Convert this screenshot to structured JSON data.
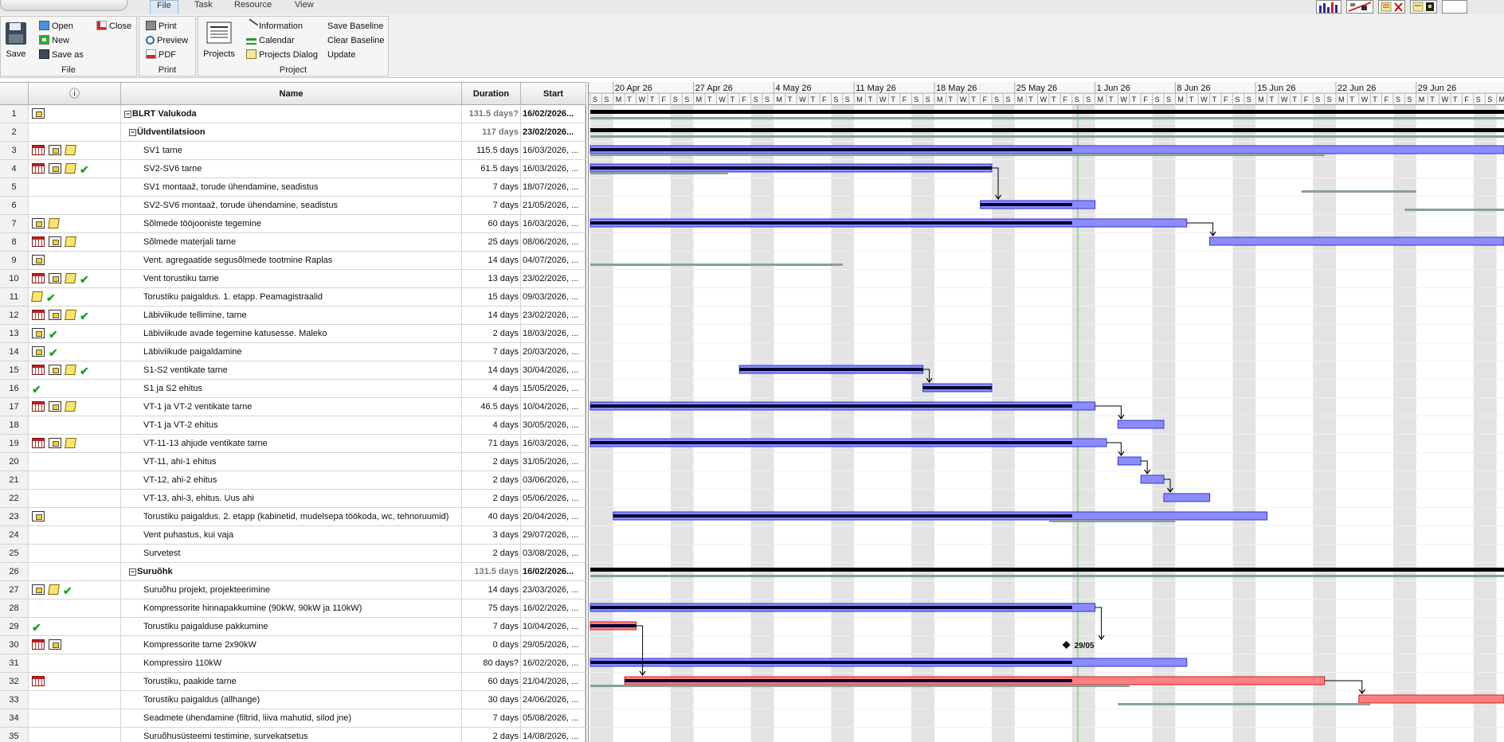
{
  "tabs": [
    {
      "label": "File",
      "active": true
    },
    {
      "label": "Task",
      "active": false
    },
    {
      "label": "Resource",
      "active": false
    },
    {
      "label": "View",
      "active": false
    }
  ],
  "ribbon": {
    "file": {
      "save": "Save",
      "open": "Open",
      "new": "New",
      "save_as": "Save as",
      "close": "Close",
      "label": "File"
    },
    "print": {
      "print": "Print",
      "preview": "Preview",
      "pdf": "PDF",
      "label": "Print"
    },
    "project": {
      "projects": "Projects",
      "information": "Information",
      "calendar": "Calendar",
      "projects_dialog": "Projects Dialog",
      "save_baseline": "Save Baseline",
      "clear_baseline": "Clear Baseline",
      "update": "Update",
      "label": "Project"
    }
  },
  "columns": {
    "info": "ⓘ",
    "name": "Name",
    "duration": "Duration",
    "start": "Start"
  },
  "rows": [
    {
      "id": "1",
      "name": "BLRT Valukoda",
      "duration": "131.5 days?",
      "start": "16/02/2026...",
      "level": 0,
      "summary": true,
      "ind": [
        "proj"
      ]
    },
    {
      "id": "2",
      "name": "Üldventilatsioon",
      "duration": "117 days",
      "start": "23/02/2026...",
      "level": 1,
      "summary": true,
      "ind": []
    },
    {
      "id": "3",
      "name": "SV1 tarne",
      "duration": "115.5 days",
      "start": "16/03/2026, ...",
      "level": 2,
      "ind": [
        "cal",
        "proj",
        "note"
      ]
    },
    {
      "id": "4",
      "name": "SV2-SV6 tarne",
      "duration": "61.5 days",
      "start": "16/03/2026, ...",
      "level": 2,
      "ind": [
        "cal",
        "proj",
        "note",
        "check"
      ]
    },
    {
      "id": "5",
      "name": "SV1 montaaž, torude ühendamine, seadistus",
      "duration": "7 days",
      "start": "18/07/2026, ...",
      "level": 2,
      "ind": []
    },
    {
      "id": "6",
      "name": "SV2-SV6 montaaž, torude ühendamine, seadistus",
      "duration": "7 days",
      "start": "21/05/2026, ...",
      "level": 2,
      "ind": []
    },
    {
      "id": "7",
      "name": "Sõlmede tööjooniste tegemine",
      "duration": "60 days",
      "start": "16/03/2026, ...",
      "level": 2,
      "ind": [
        "proj",
        "note"
      ]
    },
    {
      "id": "8",
      "name": "Sõlmede materjali tarne",
      "duration": "25 days",
      "start": "08/06/2026, ...",
      "level": 2,
      "ind": [
        "cal",
        "proj",
        "note"
      ]
    },
    {
      "id": "9",
      "name": "Vent. agregaatide segusõlmede tootmine Raplas",
      "duration": "14 days",
      "start": "04/07/2026, ...",
      "level": 2,
      "ind": [
        "proj"
      ]
    },
    {
      "id": "10",
      "name": "Vent torustiku tarne",
      "duration": "13 days",
      "start": "23/02/2026, ...",
      "level": 2,
      "ind": [
        "cal",
        "proj",
        "note",
        "check"
      ]
    },
    {
      "id": "11",
      "name": "Torustiku paigaldus. 1. etapp. Peamagistraalid",
      "duration": "15 days",
      "start": "09/03/2026, ...",
      "level": 2,
      "ind": [
        "note",
        "check"
      ]
    },
    {
      "id": "12",
      "name": "Läbiviikude tellimine, tarne",
      "duration": "14 days",
      "start": "23/02/2026, ...",
      "level": 2,
      "ind": [
        "cal",
        "proj",
        "note",
        "check"
      ]
    },
    {
      "id": "13",
      "name": "Läbiviikude avade tegemine katusesse. Maleko",
      "duration": "2 days",
      "start": "18/03/2026, ...",
      "level": 2,
      "ind": [
        "proj",
        "check"
      ]
    },
    {
      "id": "14",
      "name": "Läbiviikude paigaldamine",
      "duration": "7 days",
      "start": "20/03/2026, ...",
      "level": 2,
      "ind": [
        "proj",
        "check"
      ]
    },
    {
      "id": "15",
      "name": "S1-S2 ventikate tarne",
      "duration": "14 days",
      "start": "30/04/2026, ...",
      "level": 2,
      "ind": [
        "cal",
        "proj",
        "note",
        "check"
      ]
    },
    {
      "id": "16",
      "name": "S1 ja S2 ehitus",
      "duration": "4 days",
      "start": "15/05/2026, ...",
      "level": 2,
      "ind": [
        "check"
      ]
    },
    {
      "id": "17",
      "name": "VT-1 ja VT-2 ventikate tarne",
      "duration": "46.5 days",
      "start": "10/04/2026, ...",
      "level": 2,
      "ind": [
        "cal",
        "proj",
        "note"
      ]
    },
    {
      "id": "18",
      "name": "VT-1 ja VT-2 ehitus",
      "duration": "4 days",
      "start": "30/05/2026, ...",
      "level": 2,
      "ind": []
    },
    {
      "id": "19",
      "name": "VT-11-13 ahjude ventikate tarne",
      "duration": "71 days",
      "start": "16/03/2026, ...",
      "level": 2,
      "ind": [
        "cal",
        "proj",
        "note"
      ]
    },
    {
      "id": "20",
      "name": "VT-11, ahi-1 ehitus",
      "duration": "2 days",
      "start": "31/05/2026, ...",
      "level": 2,
      "ind": []
    },
    {
      "id": "21",
      "name": "VT-12, ahi-2  ehitus",
      "duration": "2 days",
      "start": "03/06/2026, ...",
      "level": 2,
      "ind": []
    },
    {
      "id": "22",
      "name": "VT-13, ahi-3, ehitus. Uus ahi",
      "duration": "2 days",
      "start": "05/06/2026, ...",
      "level": 2,
      "ind": []
    },
    {
      "id": "23",
      "name": "Torustiku paigaldus. 2. etapp (kabinetid, mudelsepa töökoda, wc, tehnoruumid)",
      "duration": "40 days",
      "start": "20/04/2026, ...",
      "level": 2,
      "ind": [
        "proj"
      ]
    },
    {
      "id": "24",
      "name": "Vent puhastus, kui vaja",
      "duration": "3 days",
      "start": "29/07/2026, ...",
      "level": 2,
      "ind": []
    },
    {
      "id": "25",
      "name": "Survetest",
      "duration": "2 days",
      "start": "03/08/2026, ...",
      "level": 2,
      "ind": []
    },
    {
      "id": "26",
      "name": "Suruõhk",
      "duration": "131.5 days",
      "start": "16/02/2026...",
      "level": 1,
      "summary": true,
      "ind": []
    },
    {
      "id": "27",
      "name": "Suruõhu projekt, projekteerimine",
      "duration": "14 days",
      "start": "23/03/2026, ...",
      "level": 2,
      "ind": [
        "proj",
        "note",
        "check"
      ]
    },
    {
      "id": "28",
      "name": "Kompressorite hinnapakkumine (90kW, 90kW ja 110kW)",
      "duration": "75 days",
      "start": "16/02/2026, ...",
      "level": 2,
      "ind": []
    },
    {
      "id": "29",
      "name": "Torustiku paigalduse pakkumine",
      "duration": "7 days",
      "start": "10/04/2026, ...",
      "level": 2,
      "ind": [
        "check"
      ]
    },
    {
      "id": "30",
      "name": "Kompressorite tarne 2x90kW",
      "duration": "0 days",
      "start": "29/05/2026, ...",
      "level": 2,
      "ind": [
        "cal",
        "proj"
      ]
    },
    {
      "id": "31",
      "name": "Kompressiro 110kW",
      "duration": "80 days?",
      "start": "16/02/2026, ...",
      "level": 2,
      "ind": []
    },
    {
      "id": "32",
      "name": "Torustiku, paakide tarne",
      "duration": "60 days",
      "start": "21/04/2026, ...",
      "level": 2,
      "ind": [
        "cal"
      ]
    },
    {
      "id": "33",
      "name": "Torustiku paigaldus (allhange)",
      "duration": "30 days",
      "start": "24/06/2026, ...",
      "level": 2,
      "ind": []
    },
    {
      "id": "34",
      "name": "Seadmete ühendamine (filtrid, liiva mahutid, silod jne)",
      "duration": "7 days",
      "start": "05/08/2026, ...",
      "level": 2,
      "ind": []
    },
    {
      "id": "35",
      "name": "Suruõhusüsteemi testimine, survekatsetus",
      "duration": "2 days",
      "start": "14/08/2026, ...",
      "level": 2,
      "ind": []
    }
  ],
  "timeline": {
    "weeks": [
      "20 Apr 26",
      "27 Apr 26",
      "4 May 26",
      "11 May 26",
      "18 May 26",
      "25 May 26",
      "1 Jun 26",
      "8 Jun 26",
      "15 Jun 26",
      "22 Jun 26",
      "29 Jun 26"
    ],
    "first_visible_date": "18/04/2026",
    "days_visible": 80,
    "day_letters": [
      "S",
      "S",
      "M",
      "T",
      "W",
      "T",
      "F"
    ],
    "today": "30/05/2026"
  },
  "bars": [
    {
      "row": 1,
      "type": "summary",
      "from": "18/04/2026",
      "to": "31/07/2026"
    },
    {
      "row": 1,
      "type": "baseline",
      "from": "18/04/2026",
      "to": "31/07/2026"
    },
    {
      "row": 2,
      "type": "summary",
      "from": "18/04/2026",
      "to": "31/07/2026"
    },
    {
      "row": 2,
      "type": "baseline",
      "from": "18/04/2026",
      "to": "31/07/2026"
    },
    {
      "row": 3,
      "type": "task",
      "from": "18/04/2026",
      "to": "31/07/2026",
      "progress_to": "29/05/2026"
    },
    {
      "row": 3,
      "type": "baseline",
      "from": "18/04/2026",
      "to": "20/06/2026"
    },
    {
      "row": 4,
      "type": "task",
      "from": "18/04/2026",
      "to": "22/05/2026",
      "progress_to": "22/05/2026"
    },
    {
      "row": 4,
      "type": "baseline",
      "from": "18/04/2026",
      "to": "29/04/2026"
    },
    {
      "row": 5,
      "type": "baseline",
      "from": "19/06/2026",
      "to": "28/06/2026"
    },
    {
      "row": 6,
      "type": "task",
      "from": "22/05/2026",
      "to": "31/05/2026",
      "progress_to": "29/05/2026"
    },
    {
      "row": 6,
      "type": "baseline",
      "from": "28/06/2026",
      "to": "31/07/2026"
    },
    {
      "row": 7,
      "type": "task",
      "from": "18/04/2026",
      "to": "08/06/2026",
      "progress_to": "29/05/2026"
    },
    {
      "row": 8,
      "type": "task",
      "from": "11/06/2026",
      "to": "31/07/2026"
    },
    {
      "row": 9,
      "type": "baseline",
      "from": "18/04/2026",
      "to": "09/05/2026"
    },
    {
      "row": 15,
      "type": "task",
      "from": "01/05/2026",
      "to": "16/05/2026",
      "progress_to": "16/05/2026"
    },
    {
      "row": 16,
      "type": "task",
      "from": "17/05/2026",
      "to": "22/05/2026",
      "progress_to": "22/05/2026"
    },
    {
      "row": 17,
      "type": "task",
      "from": "18/04/2026",
      "to": "31/05/2026",
      "progress_to": "29/05/2026"
    },
    {
      "row": 18,
      "type": "task",
      "from": "03/06/2026",
      "to": "06/06/2026"
    },
    {
      "row": 19,
      "type": "task",
      "from": "18/04/2026",
      "to": "01/06/2026",
      "progress_to": "29/05/2026"
    },
    {
      "row": 20,
      "type": "task",
      "from": "03/06/2026",
      "to": "04/06/2026"
    },
    {
      "row": 21,
      "type": "task",
      "from": "05/06/2026",
      "to": "06/06/2026"
    },
    {
      "row": 22,
      "type": "task",
      "from": "07/06/2026",
      "to": "10/06/2026"
    },
    {
      "row": 23,
      "type": "task",
      "from": "20/04/2026",
      "to": "15/06/2026",
      "progress_to": "29/05/2026"
    },
    {
      "row": 23,
      "type": "baseline",
      "from": "28/05/2026",
      "to": "07/06/2026"
    },
    {
      "row": 26,
      "type": "summary",
      "from": "18/04/2026",
      "to": "31/07/2026"
    },
    {
      "row": 26,
      "type": "baseline",
      "from": "18/04/2026",
      "to": "31/07/2026"
    },
    {
      "row": 28,
      "type": "task",
      "from": "18/04/2026",
      "to": "31/05/2026",
      "progress_to": "29/05/2026"
    },
    {
      "row": 29,
      "type": "critical",
      "from": "18/04/2026",
      "to": "21/04/2026",
      "progress_to": "21/04/2026"
    },
    {
      "row": 31,
      "type": "task",
      "from": "18/04/2026",
      "to": "08/06/2026",
      "progress_to": "29/05/2026"
    },
    {
      "row": 32,
      "type": "critical",
      "from": "21/04/2026",
      "to": "20/06/2026",
      "progress_to": "29/05/2026"
    },
    {
      "row": 32,
      "type": "baseline",
      "from": "18/04/2026",
      "to": "03/06/2026"
    },
    {
      "row": 33,
      "type": "critical",
      "from": "24/06/2026",
      "to": "31/07/2026"
    },
    {
      "row": 33,
      "type": "baseline",
      "from": "03/06/2026",
      "to": "24/06/2026"
    }
  ],
  "milestones": [
    {
      "row": 30,
      "date": "29/05/2026",
      "label": "29/05"
    }
  ],
  "links": [
    {
      "from_row": 4,
      "to_row": 6
    },
    {
      "from_row": 7,
      "to_row": 8
    },
    {
      "from_row": 15,
      "to_row": 16
    },
    {
      "from_row": 17,
      "to_row": 18
    },
    {
      "from_row": 19,
      "to_row": 20
    },
    {
      "from_row": 20,
      "to_row": 21
    },
    {
      "from_row": 21,
      "to_row": 22
    },
    {
      "from_row": 28,
      "to_row": 30
    },
    {
      "from_row": 29,
      "to_row": 32
    },
    {
      "from_row": 32,
      "to_row": 33
    }
  ],
  "colors": {
    "task": "#8c8cff",
    "task_border": "#3333cc",
    "progress": "#000033",
    "critical": "#ff8080",
    "critical_border": "#cc2222",
    "baseline": "#8a9e9e",
    "summary": "#000000",
    "weekend": "#e3e3e3",
    "today": "#55cc55"
  }
}
